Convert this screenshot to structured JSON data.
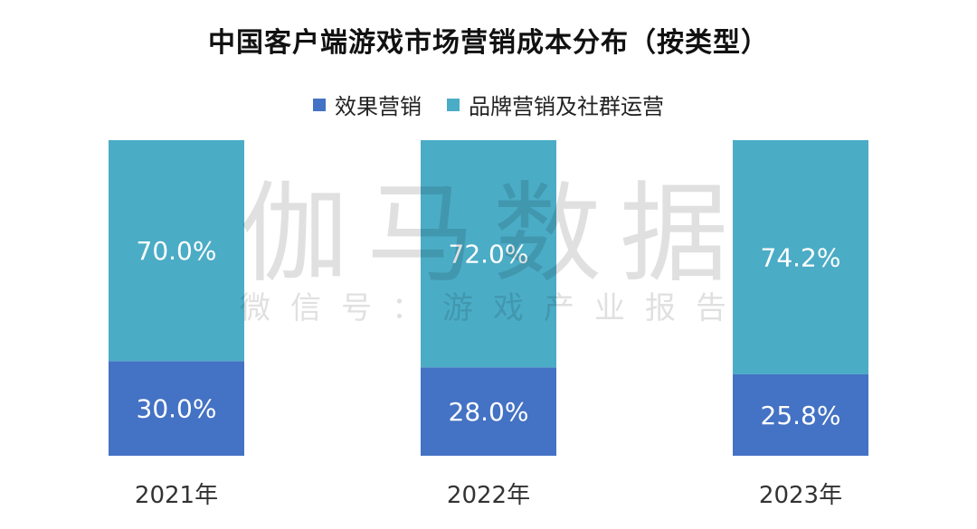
{
  "chart_data": {
    "type": "bar",
    "stacked": true,
    "percent_stacked": true,
    "title": "中国客户端游戏市场营销成本分布（按类型）",
    "categories": [
      "2021年",
      "2022年",
      "2023年"
    ],
    "series": [
      {
        "name": "效果营销",
        "values": [
          30.0,
          28.0,
          25.8
        ],
        "labels": [
          "30.0%",
          "28.0%",
          "25.8%"
        ],
        "color": "#4472C4"
      },
      {
        "name": "品牌营销及社群运营",
        "values": [
          70.0,
          72.0,
          74.2
        ],
        "labels": [
          "70.0%",
          "72.0%",
          "74.2%"
        ],
        "color": "#4BACC6"
      }
    ],
    "ylim": [
      0,
      100
    ],
    "legend": "top-center",
    "grid": false
  },
  "watermark": {
    "main": "伽马数据",
    "sub": "微信号：游戏产业报告"
  }
}
